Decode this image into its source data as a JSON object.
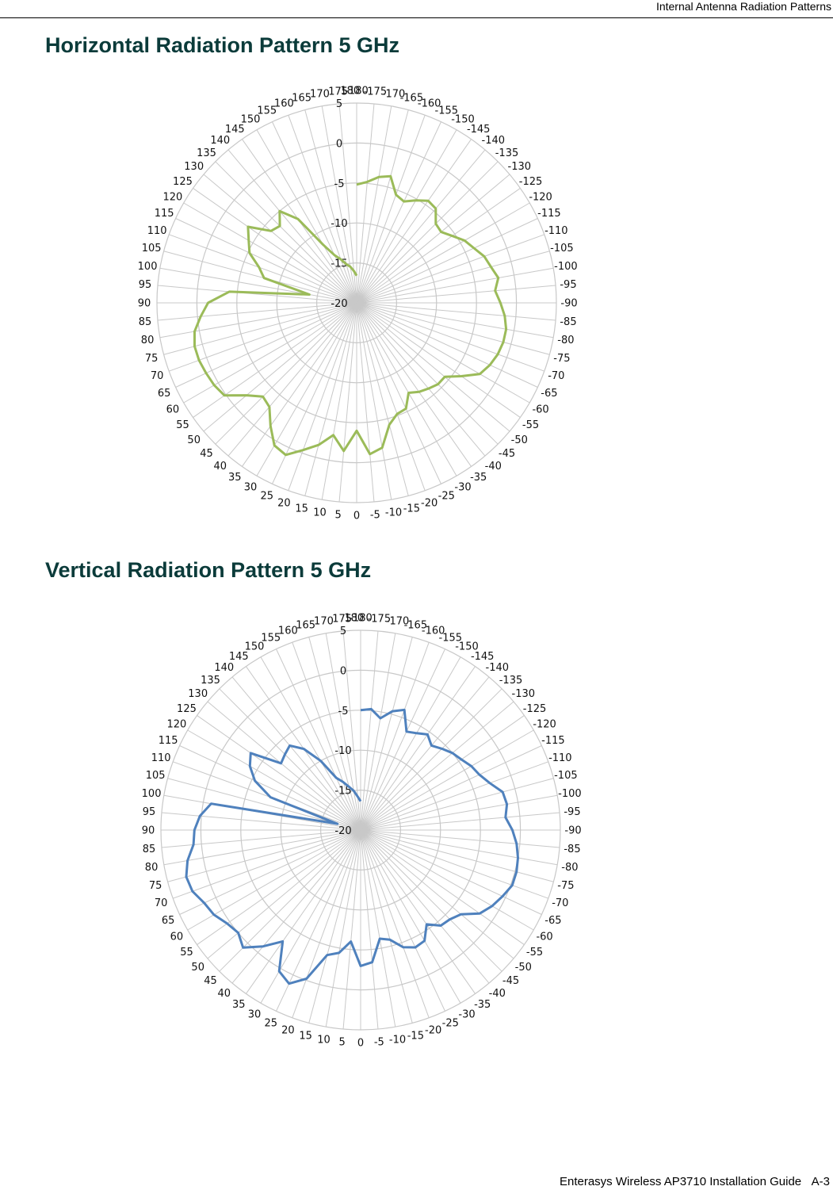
{
  "header": {
    "running_title": "Internal Antenna Radiation Patterns"
  },
  "footer": {
    "guide_title": "Enterasys Wireless AP3710 Installation Guide",
    "page_number": "A-3"
  },
  "colors": {
    "horizontal_series": "#9bbb59",
    "vertical_series": "#4f81bd",
    "grid": "#c8c8c8"
  },
  "sections": [
    {
      "title": "Horizontal Radiation Pattern 5 GHz"
    },
    {
      "title": "Vertical Radiation Pattern 5 GHz"
    }
  ],
  "chart_data": [
    {
      "type": "radar",
      "title": "",
      "angle_unit": "degrees",
      "angle_order": "clockwise from top, starting at -180",
      "angles": [
        -180,
        -175,
        -170,
        -165,
        -160,
        -155,
        -150,
        -145,
        -140,
        -135,
        -130,
        -125,
        -120,
        -115,
        -110,
        -105,
        -100,
        -95,
        -90,
        -85,
        -80,
        -75,
        -70,
        -65,
        -60,
        -55,
        -50,
        -45,
        -40,
        -35,
        -30,
        -25,
        -20,
        -15,
        -10,
        -5,
        0,
        5,
        10,
        15,
        20,
        25,
        30,
        35,
        40,
        45,
        50,
        55,
        60,
        65,
        70,
        75,
        80,
        85,
        90,
        95,
        100,
        105,
        110,
        115,
        120,
        125,
        130,
        135,
        140,
        145,
        150,
        155,
        160,
        165,
        170,
        175,
        180
      ],
      "angle_labels": [
        "-180",
        "-175",
        "-170",
        "-165",
        "-160",
        "-155",
        "-150",
        "-145",
        "-140",
        "-135",
        "-130",
        "-125",
        "-120",
        "-115",
        "-110",
        "-105",
        "-100",
        "-95",
        "-90",
        "-85",
        "-80",
        "-75",
        "-70",
        "-65",
        "-60",
        "-55",
        "-50",
        "-45",
        "-40",
        "-35",
        "-30",
        "-25",
        "-20",
        "-15",
        "-10",
        "-5",
        "0",
        "5",
        "10",
        "15",
        "20",
        "25",
        "30",
        "35",
        "40",
        "45",
        "50",
        "55",
        "60",
        "65",
        "70",
        "75",
        "80",
        "85",
        "90",
        "95",
        "100",
        "105",
        "110",
        "115",
        "120",
        "125",
        "130",
        "135",
        "140",
        "145",
        "150",
        "155",
        "160",
        "165",
        "170",
        "175",
        "180"
      ],
      "radial_ticks": [
        5,
        0,
        -5,
        -10,
        -15,
        -20
      ],
      "radial_labels": [
        "5",
        "0",
        "-5",
        "-10",
        "-15",
        "-20"
      ],
      "rlim": [
        -20,
        5
      ],
      "grid": true,
      "legend": "none",
      "series": [
        {
          "color": "#9bbb59",
          "values": [
            -5.2,
            -4.8,
            -4.0,
            -3.6,
            -5.6,
            -6.0,
            -5.2,
            -4.4,
            -4.6,
            -6.0,
            -6.2,
            -5.4,
            -4.4,
            -3.8,
            -3.0,
            -2.6,
            -2.0,
            -2.6,
            -2.0,
            -1.4,
            -1.0,
            -1.0,
            -1.2,
            -1.6,
            -2.2,
            -4.0,
            -5.6,
            -5.6,
            -6.0,
            -6.4,
            -7.0,
            -5.4,
            -5.2,
            -4.2,
            -1.6,
            -1.0,
            -4.0,
            -1.4,
            -3.2,
            -1.6,
            -0.4,
            1.0,
            0.6,
            -1.2,
            -3.0,
            -3.4,
            -2.0,
            0.2,
            0.6,
            0.8,
            1.0,
            1.0,
            0.6,
            -0.4,
            -1.4,
            -4.0,
            -14.0,
            -8.0,
            -7.0,
            -5.2,
            -4.4,
            -3.4,
            -6.0,
            -6.4,
            -5.0,
            -7.2,
            -11.6,
            -13.4,
            -14.2,
            -15.0,
            -15.4,
            -16.0,
            -16.6
          ]
        }
      ]
    },
    {
      "type": "radar",
      "title": "",
      "angle_unit": "degrees",
      "angle_order": "clockwise from top, starting at -180",
      "angles": [
        -180,
        -175,
        -170,
        -165,
        -160,
        -155,
        -150,
        -145,
        -140,
        -135,
        -130,
        -125,
        -120,
        -115,
        -110,
        -105,
        -100,
        -95,
        -90,
        -85,
        -80,
        -75,
        -70,
        -65,
        -60,
        -55,
        -50,
        -45,
        -40,
        -35,
        -30,
        -25,
        -20,
        -15,
        -10,
        -5,
        0,
        5,
        10,
        15,
        20,
        25,
        30,
        35,
        40,
        45,
        50,
        55,
        60,
        65,
        70,
        75,
        80,
        85,
        90,
        95,
        100,
        105,
        110,
        115,
        120,
        125,
        130,
        135,
        140,
        145,
        150,
        155,
        160,
        165,
        170,
        175,
        180
      ],
      "angle_labels": [
        "-180",
        "-175",
        "-170",
        "-165",
        "-160",
        "-155",
        "-150",
        "-145",
        "-140",
        "-135",
        "-130",
        "-125",
        "-120",
        "-115",
        "-110",
        "-105",
        "-100",
        "-95",
        "-90",
        "-85",
        "-80",
        "-75",
        "-70",
        "-65",
        "-60",
        "-55",
        "-50",
        "-45",
        "-40",
        "-35",
        "-30",
        "-25",
        "-20",
        "-15",
        "-10",
        "-5",
        "0",
        "5",
        "10",
        "15",
        "20",
        "25",
        "30",
        "35",
        "40",
        "45",
        "50",
        "55",
        "60",
        "65",
        "70",
        "75",
        "80",
        "85",
        "90",
        "95",
        "100",
        "105",
        "110",
        "115",
        "120",
        "125",
        "130",
        "135",
        "140",
        "145",
        "150",
        "155",
        "160",
        "165",
        "170",
        "175",
        "180"
      ],
      "radial_ticks": [
        5,
        0,
        -5,
        -10,
        -15,
        -20
      ],
      "radial_labels": [
        "5",
        "0",
        "-5",
        "-10",
        "-15",
        "-20"
      ],
      "rlim": [
        -20,
        5
      ],
      "grid": true,
      "legend": "none",
      "series": [
        {
          "color": "#4f81bd",
          "values": [
            -5.0,
            -4.8,
            -5.8,
            -4.6,
            -4.0,
            -6.4,
            -6.0,
            -5.4,
            -6.2,
            -5.6,
            -5.0,
            -4.6,
            -4.0,
            -3.6,
            -2.8,
            -1.6,
            -1.4,
            -1.8,
            -1.0,
            -0.4,
            0.0,
            0.2,
            0.2,
            -0.4,
            -1.0,
            -1.8,
            -3.6,
            -4.2,
            -4.4,
            -5.6,
            -4.0,
            -3.8,
            -4.4,
            -5.8,
            -6.2,
            -3.4,
            -3.0,
            -6.0,
            -4.4,
            -3.8,
            -0.2,
            1.2,
            0.4,
            -3.0,
            -1.0,
            0.8,
            0.0,
            0.4,
            1.2,
            1.6,
            2.4,
            2.6,
            2.0,
            1.0,
            0.8,
            0.2,
            -1.0,
            -17.0,
            -8.0,
            -5.4,
            -4.0,
            -3.2,
            -7.0,
            -6.6,
            -6.2,
            -7.6,
            -10.0,
            -12.8,
            -13.6,
            -14.4,
            -15.0,
            -15.8,
            -16.4
          ]
        }
      ]
    }
  ]
}
